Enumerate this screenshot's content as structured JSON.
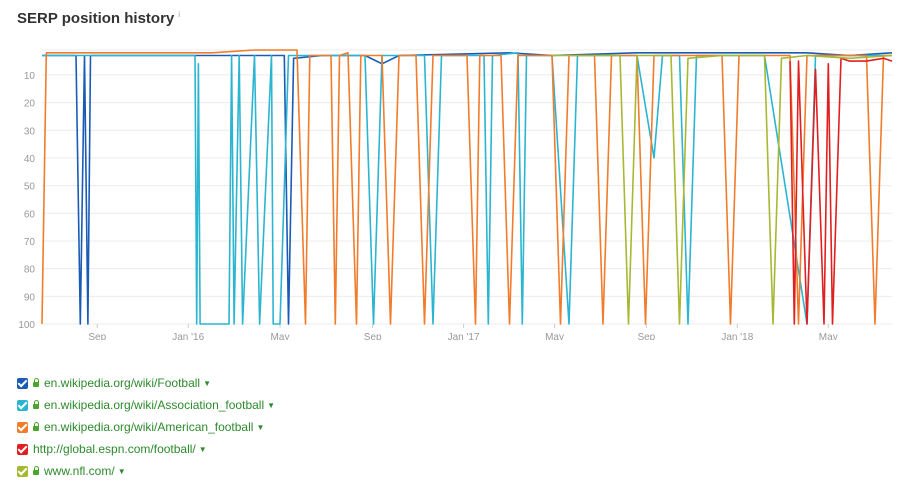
{
  "title": "SERP position history",
  "info_icon": "i",
  "chart_data": {
    "type": "line",
    "title": "SERP position history",
    "y_reversed": true,
    "ylim": [
      100,
      1
    ],
    "y_ticks": [
      10,
      20,
      30,
      40,
      50,
      60,
      70,
      80,
      90,
      100
    ],
    "x_ticks": [
      "Sep",
      "Jan '16",
      "May",
      "Sep",
      "Jan '17",
      "May",
      "Sep",
      "Jan '18",
      "May"
    ],
    "grid": true,
    "series": [
      {
        "name": "en.wikipedia.org/wiki/Football",
        "color": "#1a5cb5",
        "points": [
          [
            0.0,
            3
          ],
          [
            0.04,
            3
          ],
          [
            0.045,
            100
          ],
          [
            0.05,
            3
          ],
          [
            0.054,
            100
          ],
          [
            0.057,
            3
          ],
          [
            0.07,
            3
          ],
          [
            0.285,
            3
          ],
          [
            0.29,
            100
          ],
          [
            0.296,
            4
          ],
          [
            0.33,
            3
          ],
          [
            0.38,
            3
          ],
          [
            0.4,
            6
          ],
          [
            0.42,
            3
          ],
          [
            0.55,
            2
          ],
          [
            0.6,
            3
          ],
          [
            0.7,
            2
          ],
          [
            0.8,
            2
          ],
          [
            0.85,
            2
          ],
          [
            0.9,
            2
          ],
          [
            0.95,
            3
          ],
          [
            1.0,
            2
          ]
        ]
      },
      {
        "name": "en.wikipedia.org/wiki/Association_football",
        "color": "#2bb5d1",
        "points": [
          [
            0.0,
            3
          ],
          [
            0.18,
            3
          ],
          [
            0.182,
            100
          ],
          [
            0.184,
            6
          ],
          [
            0.186,
            100
          ],
          [
            0.22,
            100
          ],
          [
            0.223,
            3
          ],
          [
            0.226,
            100
          ],
          [
            0.232,
            3
          ],
          [
            0.236,
            100
          ],
          [
            0.25,
            3
          ],
          [
            0.256,
            100
          ],
          [
            0.27,
            3
          ],
          [
            0.272,
            100
          ],
          [
            0.28,
            100
          ],
          [
            0.29,
            3
          ],
          [
            0.38,
            3
          ],
          [
            0.39,
            100
          ],
          [
            0.4,
            3
          ],
          [
            0.45,
            3
          ],
          [
            0.46,
            100
          ],
          [
            0.47,
            3
          ],
          [
            0.52,
            3
          ],
          [
            0.525,
            100
          ],
          [
            0.53,
            3
          ],
          [
            0.56,
            2
          ],
          [
            0.565,
            100
          ],
          [
            0.57,
            3
          ],
          [
            0.6,
            3
          ],
          [
            0.62,
            100
          ],
          [
            0.63,
            3
          ],
          [
            0.7,
            3
          ],
          [
            0.72,
            40
          ],
          [
            0.73,
            3
          ],
          [
            0.75,
            3
          ],
          [
            0.76,
            100
          ],
          [
            0.77,
            3
          ],
          [
            0.85,
            3
          ],
          [
            0.9,
            100
          ],
          [
            0.91,
            3
          ],
          [
            1.0,
            3
          ]
        ]
      },
      {
        "name": "en.wikipedia.org/wiki/American_football",
        "color": "#f07c2c",
        "points": [
          [
            0.0,
            100
          ],
          [
            0.005,
            2
          ],
          [
            0.2,
            2
          ],
          [
            0.25,
            1
          ],
          [
            0.3,
            1
          ],
          [
            0.31,
            100
          ],
          [
            0.315,
            3
          ],
          [
            0.34,
            3
          ],
          [
            0.345,
            100
          ],
          [
            0.35,
            3
          ],
          [
            0.36,
            2
          ],
          [
            0.37,
            100
          ],
          [
            0.375,
            3
          ],
          [
            0.4,
            3
          ],
          [
            0.41,
            100
          ],
          [
            0.42,
            3
          ],
          [
            0.44,
            3
          ],
          [
            0.45,
            100
          ],
          [
            0.46,
            3
          ],
          [
            0.5,
            3
          ],
          [
            0.51,
            100
          ],
          [
            0.515,
            3
          ],
          [
            0.54,
            3
          ],
          [
            0.55,
            100
          ],
          [
            0.56,
            3
          ],
          [
            0.58,
            3
          ],
          [
            0.6,
            3
          ],
          [
            0.61,
            100
          ],
          [
            0.62,
            3
          ],
          [
            0.65,
            3
          ],
          [
            0.66,
            100
          ],
          [
            0.67,
            3
          ],
          [
            0.7,
            3
          ],
          [
            0.71,
            100
          ],
          [
            0.72,
            3
          ],
          [
            0.75,
            3
          ],
          [
            0.8,
            3
          ],
          [
            0.81,
            100
          ],
          [
            0.82,
            3
          ],
          [
            0.88,
            3
          ],
          [
            0.89,
            100
          ],
          [
            0.9,
            3
          ],
          [
            0.97,
            3
          ],
          [
            0.98,
            100
          ],
          [
            0.99,
            3
          ],
          [
            1.0,
            3
          ]
        ]
      },
      {
        "name": "http://global.espn.com/football/",
        "color": "#e02020",
        "points": [
          [
            0.88,
            5
          ],
          [
            0.885,
            100
          ],
          [
            0.89,
            5
          ],
          [
            0.9,
            100
          ],
          [
            0.91,
            8
          ],
          [
            0.92,
            100
          ],
          [
            0.925,
            6
          ],
          [
            0.93,
            100
          ],
          [
            0.94,
            4
          ],
          [
            0.95,
            5
          ],
          [
            0.97,
            5
          ],
          [
            0.99,
            4
          ],
          [
            1.0,
            5
          ]
        ]
      },
      {
        "name": "www.nfl.com/",
        "color": "#a8b832",
        "points": [
          [
            0.6,
            3
          ],
          [
            0.68,
            3
          ],
          [
            0.69,
            100
          ],
          [
            0.7,
            3
          ],
          [
            0.74,
            3
          ],
          [
            0.75,
            100
          ],
          [
            0.76,
            4
          ],
          [
            0.8,
            3
          ],
          [
            0.85,
            3
          ],
          [
            0.86,
            100
          ],
          [
            0.87,
            4
          ],
          [
            0.9,
            3
          ],
          [
            0.95,
            4
          ],
          [
            1.0,
            3
          ]
        ]
      }
    ]
  },
  "legend": [
    {
      "label": "en.wikipedia.org/wiki/Football",
      "color": "#1a5cb5",
      "locked": true,
      "checked": true
    },
    {
      "label": "en.wikipedia.org/wiki/Association_football",
      "color": "#2bb5d1",
      "locked": true,
      "checked": true
    },
    {
      "label": "en.wikipedia.org/wiki/American_football",
      "color": "#f07c2c",
      "locked": true,
      "checked": true
    },
    {
      "label": "http://global.espn.com/football/",
      "color": "#e02020",
      "locked": false,
      "checked": true
    },
    {
      "label": "www.nfl.com/",
      "color": "#a8b832",
      "locked": true,
      "checked": true
    }
  ]
}
